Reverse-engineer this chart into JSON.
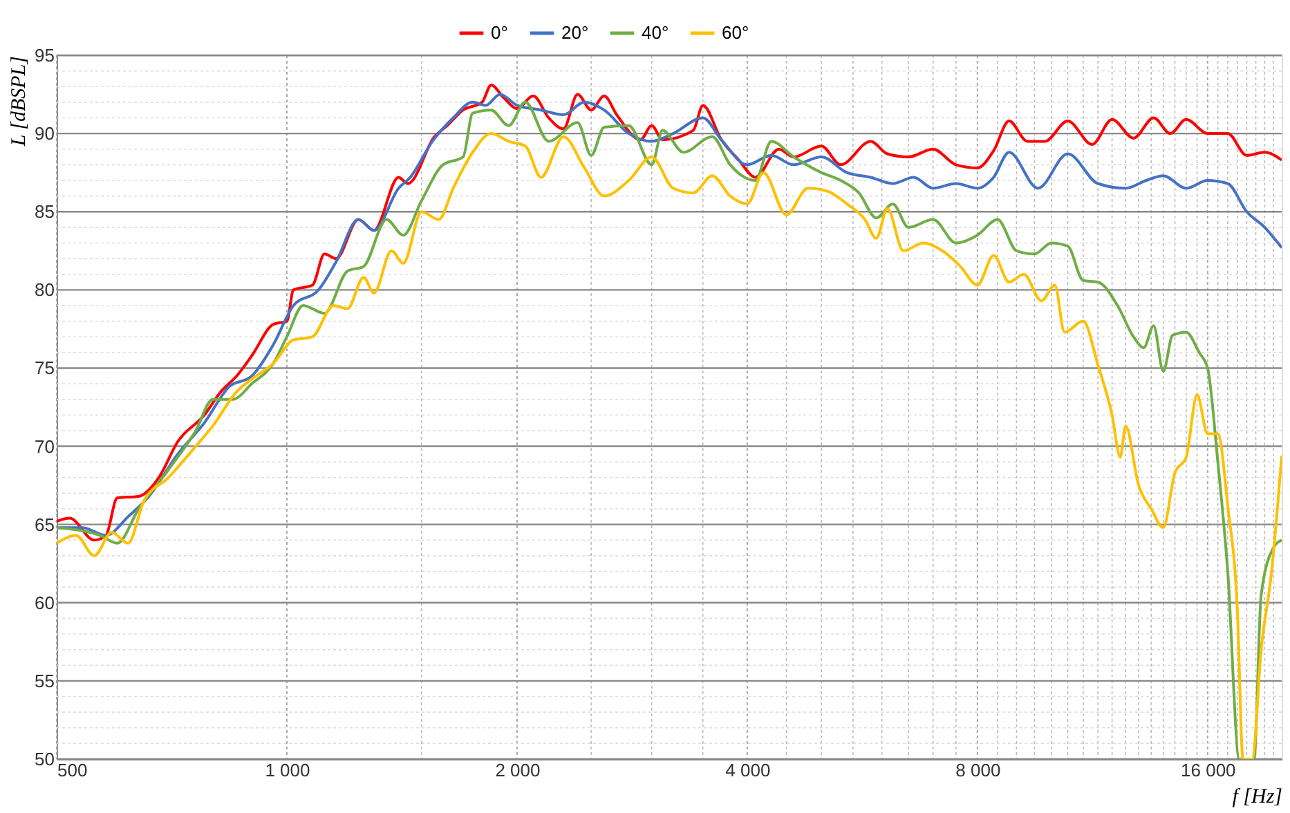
{
  "chart_data": {
    "type": "line",
    "xlabel": "f [Hz]",
    "ylabel": "L [dBSPL]",
    "log": "x",
    "grid": true,
    "legend": "top",
    "marker": "none",
    "line_style": "solid",
    "xlim": [
      500,
      20000
    ],
    "ylim": [
      50,
      95
    ],
    "xticks": [
      {
        "value": 500,
        "label": "500"
      },
      {
        "value": 1000,
        "label": "1 000"
      },
      {
        "value": 1500,
        "label": null
      },
      {
        "value": 2000,
        "label": "2 000"
      },
      {
        "value": 2500,
        "label": null
      },
      {
        "value": 3000,
        "label": null
      },
      {
        "value": 3500,
        "label": null
      },
      {
        "value": 4000,
        "label": "4 000"
      },
      {
        "value": 4500,
        "label": null
      },
      {
        "value": 5000,
        "label": null
      },
      {
        "value": 5500,
        "label": null
      },
      {
        "value": 6000,
        "label": null
      },
      {
        "value": 6500,
        "label": null
      },
      {
        "value": 7000,
        "label": null
      },
      {
        "value": 7500,
        "label": null
      },
      {
        "value": 8000,
        "label": "8 000"
      },
      {
        "value": 8500,
        "label": null
      },
      {
        "value": 9000,
        "label": null
      },
      {
        "value": 9500,
        "label": null
      },
      {
        "value": 10000,
        "label": null
      },
      {
        "value": 10500,
        "label": null
      },
      {
        "value": 11000,
        "label": null
      },
      {
        "value": 11500,
        "label": null
      },
      {
        "value": 12000,
        "label": null
      },
      {
        "value": 12500,
        "label": null
      },
      {
        "value": 13000,
        "label": null
      },
      {
        "value": 13500,
        "label": null
      },
      {
        "value": 14000,
        "label": null
      },
      {
        "value": 14500,
        "label": null
      },
      {
        "value": 15000,
        "label": null
      },
      {
        "value": 15500,
        "label": null
      },
      {
        "value": 16000,
        "label": "16 000"
      },
      {
        "value": 16500,
        "label": null
      },
      {
        "value": 17000,
        "label": null
      },
      {
        "value": 17500,
        "label": null
      },
      {
        "value": 18000,
        "label": null
      },
      {
        "value": 18500,
        "label": null
      },
      {
        "value": 19000,
        "label": null
      },
      {
        "value": 19500,
        "label": null
      }
    ],
    "yticks": [
      50,
      {
        "value": 51,
        "label": null
      },
      {
        "value": 52,
        "label": null
      },
      {
        "value": 53,
        "label": null
      },
      {
        "value": 54,
        "label": null
      },
      55,
      {
        "value": 56,
        "label": null
      },
      {
        "value": 57,
        "label": null
      },
      {
        "value": 58,
        "label": null
      },
      {
        "value": 59,
        "label": null
      },
      60,
      {
        "value": 61,
        "label": null
      },
      {
        "value": 62,
        "label": null
      },
      {
        "value": 63,
        "label": null
      },
      {
        "value": 64,
        "label": null
      },
      65,
      {
        "value": 66,
        "label": null
      },
      {
        "value": 67,
        "label": null
      },
      {
        "value": 68,
        "label": null
      },
      {
        "value": 69,
        "label": null
      },
      70,
      {
        "value": 71,
        "label": null
      },
      {
        "value": 72,
        "label": null
      },
      {
        "value": 73,
        "label": null
      },
      {
        "value": 74,
        "label": null
      },
      75,
      {
        "value": 76,
        "label": null
      },
      {
        "value": 77,
        "label": null
      },
      {
        "value": 78,
        "label": null
      },
      {
        "value": 79,
        "label": null
      },
      80,
      {
        "value": 81,
        "label": null
      },
      {
        "value": 82,
        "label": null
      },
      {
        "value": 83,
        "label": null
      },
      {
        "value": 84,
        "label": null
      },
      85,
      {
        "value": 86,
        "label": null
      },
      {
        "value": 87,
        "label": null
      },
      {
        "value": 88,
        "label": null
      },
      {
        "value": 89,
        "label": null
      },
      90,
      {
        "value": 91,
        "label": null
      },
      {
        "value": 92,
        "label": null
      },
      {
        "value": 93,
        "label": null
      },
      {
        "value": 94,
        "label": null
      },
      95
    ],
    "series": [
      {
        "name": "0°",
        "color": "#ff0000",
        "x": [
          500,
          520,
          560,
          580,
          600,
          640,
          680,
          720,
          780,
          820,
          860,
          900,
          960,
          1000,
          1020,
          1080,
          1120,
          1160,
          1240,
          1300,
          1400,
          1440,
          1560,
          1620,
          1700,
          1800,
          1850,
          1920,
          2000,
          2100,
          2200,
          2300,
          2400,
          2500,
          2600,
          2700,
          2900,
          3000,
          3100,
          3400,
          3500,
          3700,
          3900,
          4100,
          4400,
          4600,
          5000,
          5300,
          5800,
          6100,
          6500,
          7000,
          7500,
          8000,
          8400,
          8800,
          9300,
          9800,
          10500,
          11300,
          12000,
          12800,
          13600,
          14300,
          15000,
          16000,
          17000,
          18000,
          19000,
          20000
        ],
        "values": [
          65.2,
          65.4,
          64,
          64.3,
          66.7,
          66.8,
          68,
          70.3,
          72,
          73.5,
          74.5,
          75.8,
          77.8,
          78,
          80,
          80.3,
          82.3,
          82,
          84.5,
          83.8,
          87.2,
          86.8,
          89.8,
          90.5,
          91.5,
          92,
          93.1,
          92.3,
          91.6,
          92.4,
          91,
          90.3,
          92.5,
          91.5,
          92.4,
          91.2,
          89.6,
          90.5,
          89.6,
          90.2,
          91.8,
          89.6,
          88.3,
          87.2,
          89,
          88.5,
          89.2,
          88,
          89.5,
          88.7,
          88.5,
          89,
          88,
          87.8,
          88.9,
          90.8,
          89.5,
          89.5,
          90.8,
          89.3,
          90.9,
          89.7,
          91,
          90,
          90.9,
          90,
          90,
          88.6,
          88.8,
          88.3
        ]
      },
      {
        "name": "20°",
        "color": "#4472c4",
        "x": [
          500,
          540,
          580,
          620,
          660,
          720,
          780,
          840,
          900,
          960,
          1020,
          1100,
          1160,
          1240,
          1300,
          1400,
          1450,
          1550,
          1650,
          1750,
          1820,
          1900,
          2000,
          2150,
          2300,
          2450,
          2600,
          2800,
          3000,
          3200,
          3500,
          3700,
          4000,
          4300,
          4600,
          5000,
          5400,
          5800,
          6200,
          6600,
          7000,
          7500,
          8000,
          8400,
          8800,
          9600,
          10500,
          11500,
          12500,
          13300,
          14000,
          15000,
          16000,
          17000,
          18000,
          19000,
          20000
        ],
        "values": [
          64.8,
          64.8,
          64.3,
          65.5,
          66.8,
          69.5,
          71.5,
          73.8,
          74.5,
          76.5,
          79,
          80,
          81.8,
          84.5,
          83.8,
          86.5,
          87.2,
          89.5,
          91,
          92,
          91.8,
          92.5,
          91.8,
          91.5,
          91.2,
          92,
          91.5,
          90,
          89.5,
          90,
          91,
          89.6,
          88,
          88.6,
          88,
          88.5,
          87.5,
          87.2,
          86.8,
          87.2,
          86.5,
          86.8,
          86.5,
          87.2,
          88.8,
          86.5,
          88.7,
          86.8,
          86.5,
          87,
          87.3,
          86.5,
          87,
          86.8,
          85,
          84,
          82.7
        ]
      },
      {
        "name": "40°",
        "color": "#70ad47",
        "x": [
          500,
          570,
          600,
          640,
          700,
          760,
          800,
          850,
          900,
          960,
          1000,
          1050,
          1120,
          1200,
          1260,
          1350,
          1420,
          1500,
          1600,
          1700,
          1750,
          1850,
          1950,
          2050,
          2200,
          2400,
          2500,
          2600,
          2800,
          3000,
          3100,
          3300,
          3600,
          3800,
          4100,
          4300,
          4600,
          5000,
          5300,
          5600,
          5900,
          6200,
          6500,
          7000,
          7500,
          8000,
          8500,
          9000,
          9500,
          10000,
          10500,
          11000,
          11500,
          12200,
          12800,
          13200,
          13600,
          14000,
          14400,
          15000,
          15600,
          16000,
          16500,
          17000,
          17600,
          18000,
          18400,
          18800,
          19500,
          20000
        ],
        "values": [
          64.8,
          64.3,
          63.8,
          66,
          68.5,
          71,
          73,
          73,
          74,
          75.3,
          77,
          79,
          78.5,
          81.2,
          81.5,
          84.5,
          83.5,
          85.7,
          88,
          88.5,
          91.3,
          91.5,
          90.5,
          92,
          89.5,
          90.7,
          88.6,
          90.4,
          90.5,
          88,
          90.2,
          88.8,
          89.8,
          88,
          87,
          89.5,
          88.5,
          87.5,
          87,
          86.2,
          84.6,
          85.5,
          84,
          84.5,
          83,
          83.5,
          84.5,
          82.5,
          82.3,
          83,
          82.8,
          80.6,
          80.5,
          79,
          77,
          76.3,
          77.7,
          74.8,
          77.1,
          77.3,
          76,
          75,
          69,
          62,
          50,
          50,
          50,
          60.5,
          63.5,
          64
        ]
      },
      {
        "name": "60°",
        "color": "#ffc000",
        "x": [
          500,
          530,
          560,
          590,
          620,
          650,
          700,
          760,
          800,
          860,
          900,
          960,
          1020,
          1080,
          1150,
          1200,
          1260,
          1300,
          1370,
          1420,
          1500,
          1580,
          1650,
          1750,
          1850,
          1950,
          2050,
          2150,
          2300,
          2450,
          2600,
          2800,
          3000,
          3200,
          3400,
          3600,
          3800,
          4000,
          4200,
          4500,
          4800,
          5100,
          5400,
          5700,
          5900,
          6100,
          6400,
          6800,
          7200,
          7600,
          8000,
          8400,
          8800,
          9200,
          9700,
          10100,
          10400,
          11000,
          11500,
          12000,
          12300,
          12500,
          13000,
          13500,
          14000,
          14500,
          15000,
          15500,
          16000,
          16500,
          17000,
          17500,
          17800,
          18300,
          18800,
          19400,
          20000
        ],
        "values": [
          63.8,
          64.3,
          63,
          64.5,
          63.8,
          66.5,
          68,
          70,
          71.3,
          73.5,
          74.3,
          75.3,
          76.8,
          77,
          79,
          78.8,
          80.8,
          79.8,
          82.5,
          81.7,
          85,
          84.5,
          86.5,
          88.8,
          90,
          89.5,
          89.2,
          87.2,
          89.8,
          87.8,
          86,
          87,
          88.5,
          86.5,
          86.2,
          87.3,
          86,
          85.5,
          87.5,
          84.8,
          86.5,
          86.3,
          85.5,
          84.5,
          83.3,
          85.2,
          82.5,
          83,
          82.5,
          81.5,
          80.3,
          82.2,
          80.5,
          81,
          79.3,
          80.3,
          77.3,
          78,
          75.2,
          72,
          69.3,
          71.3,
          67.5,
          66,
          64.8,
          68.3,
          69.3,
          73.3,
          70.8,
          70.8,
          66.2,
          59.5,
          50,
          50,
          57,
          62,
          69.4
        ]
      }
    ]
  }
}
